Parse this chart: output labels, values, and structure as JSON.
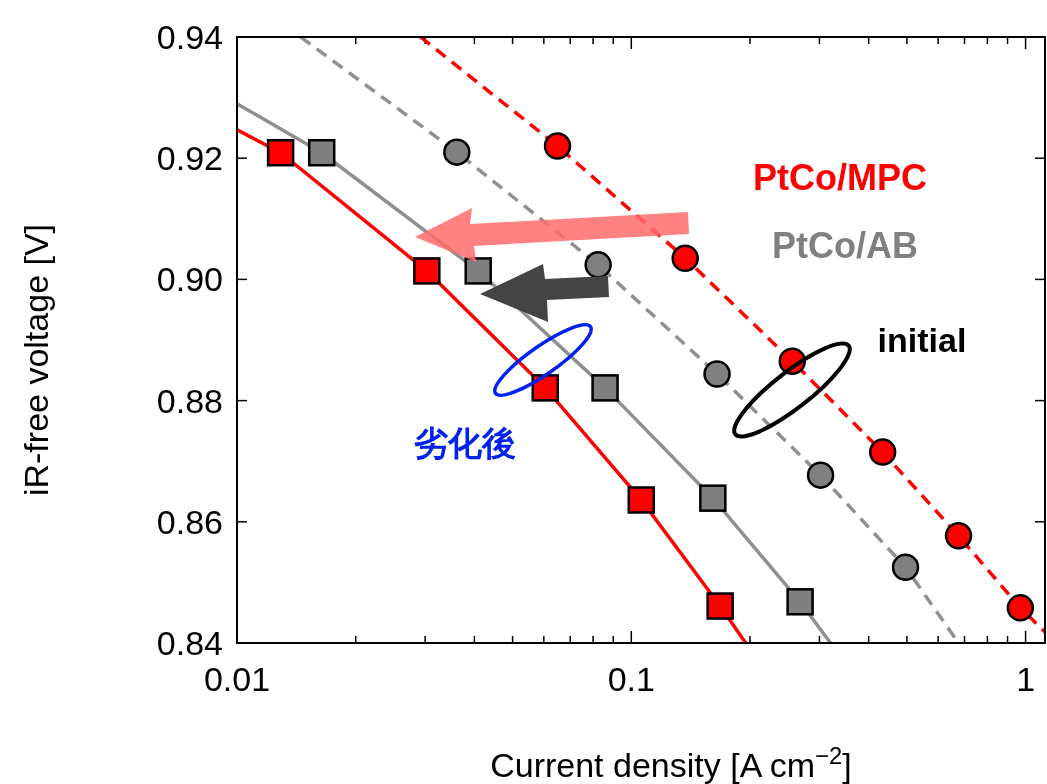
{
  "chart_data": {
    "type": "scatter",
    "xlabel": "Current density [A cm$^{−2}$]",
    "ylabel": "iR-free voltage [V]",
    "log": "x",
    "grid": false,
    "xlim": [
      0.01,
      1.12
    ],
    "xticks": [
      0.01,
      {
        "value": 0.02,
        "label": null
      },
      {
        "value": 0.03,
        "label": null
      },
      {
        "value": 0.04,
        "label": null
      },
      {
        "value": 0.05,
        "label": null
      },
      {
        "value": 0.06,
        "label": null
      },
      {
        "value": 0.07,
        "label": null
      },
      {
        "value": 0.08,
        "label": null
      },
      {
        "value": 0.09,
        "label": null
      },
      0.1,
      {
        "value": 0.2,
        "label": null
      },
      {
        "value": 0.3,
        "label": null
      },
      {
        "value": 0.4,
        "label": null
      },
      {
        "value": 0.5,
        "label": null
      },
      {
        "value": 0.6,
        "label": null
      },
      {
        "value": 0.7,
        "label": null
      },
      {
        "value": 0.8,
        "label": null
      },
      {
        "value": 0.9,
        "label": null
      },
      1
    ],
    "ylim": [
      0.84,
      0.94
    ],
    "yticks": [
      0.84,
      0.86,
      0.88,
      {
        "value": 0.9,
        "label": "0.90"
      },
      0.92,
      0.94
    ],
    "series": [
      {
        "type": "line",
        "color": "#ff0000",
        "line_style": "dashed",
        "marker": "none",
        "x": [
          0.0292,
          0.065,
          0.137,
          0.256,
          0.434,
          0.676,
          0.97,
          1.12
        ],
        "values": [
          0.94,
          0.922,
          0.9035,
          0.8865,
          0.8715,
          0.8577,
          0.8458,
          0.8418
        ]
      },
      {
        "type": "line",
        "color": "#909090",
        "line_style": "dashed",
        "marker": "none",
        "x": [
          0.0145,
          0.0361,
          0.0824,
          0.165,
          0.302,
          0.496,
          0.676
        ],
        "values": [
          0.94,
          0.921,
          0.9024,
          0.8844,
          0.8677,
          0.8525,
          0.84
        ]
      },
      {
        "type": "line",
        "color": "#909090",
        "line_style": "solid",
        "marker": "none",
        "x": [
          0.01,
          0.0164,
          0.0409,
          0.0858,
          0.161,
          0.268,
          0.32
        ],
        "values": [
          0.929,
          0.9209,
          0.9014,
          0.8821,
          0.8639,
          0.8468,
          0.84
        ]
      },
      {
        "type": "line",
        "color": "#ff0000",
        "line_style": "solid",
        "marker": "none",
        "x": [
          0.01,
          0.0129,
          0.0303,
          0.0605,
          0.106,
          0.168,
          0.195
        ],
        "values": [
          0.9247,
          0.9209,
          0.9014,
          0.8821,
          0.8636,
          0.8461,
          0.84
        ]
      },
      {
        "name": "PtCo/MPC",
        "color": "#ff0000",
        "marker": "circle",
        "x": [
          0.065,
          0.137,
          0.256,
          0.434,
          0.676,
          0.97
        ],
        "values": [
          0.922,
          0.9035,
          0.8865,
          0.8715,
          0.8577,
          0.8458
        ]
      },
      {
        "name": "PtCo/AB",
        "color": "#808080",
        "marker": "circle",
        "x": [
          0.0361,
          0.0824,
          0.165,
          0.302,
          0.496
        ],
        "values": [
          0.921,
          0.9024,
          0.8844,
          0.8677,
          0.8525
        ]
      },
      {
        "color": "#ff0000",
        "marker": "square",
        "x": [
          0.0129,
          0.0303,
          0.0605,
          0.106,
          0.168
        ],
        "values": [
          0.9209,
          0.9014,
          0.8821,
          0.8636,
          0.8461
        ]
      },
      {
        "color": "#7f7f7f",
        "marker": "square",
        "x": [
          0.0164,
          0.0409,
          0.0858,
          0.161,
          0.268
        ],
        "values": [
          0.9209,
          0.9014,
          0.8821,
          0.8639,
          0.8468
        ]
      }
    ],
    "annotations": [
      "initial",
      "劣化後"
    ]
  }
}
